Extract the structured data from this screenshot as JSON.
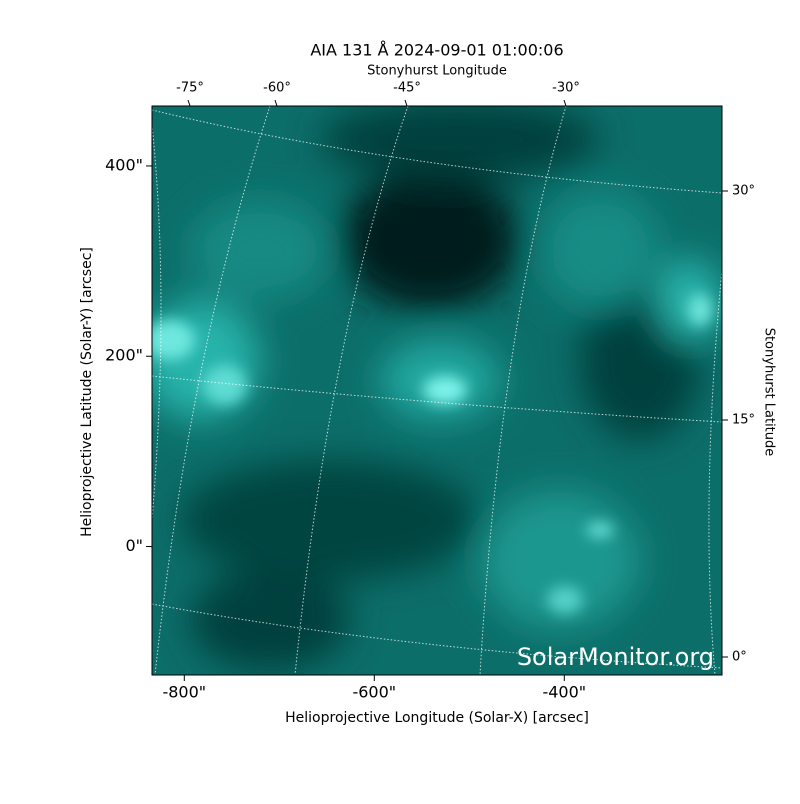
{
  "chart_data": {
    "type": "image",
    "title": "AIA 131 Å 2024-09-01 01:00:06",
    "x_label": "Helioprojective Longitude (Solar-X) [arcsec]",
    "y_label": "Helioprojective Latitude (Solar-Y) [arcsec]",
    "x2_label": "Stonyhurst Longitude",
    "y2_label": "Stonyhurst Latitude",
    "xlim": [
      -834,
      -234
    ],
    "ylim": [
      -135,
      463
    ],
    "xticks": [
      {
        "value": -800,
        "label": "-800\""
      },
      {
        "value": -600,
        "label": "-600\""
      },
      {
        "value": -400,
        "label": "-400\""
      }
    ],
    "yticks": [
      {
        "value": 0,
        "label": "0\""
      },
      {
        "value": 200,
        "label": "200\""
      },
      {
        "value": 400,
        "label": "400\""
      }
    ],
    "x2_tick_labels": [
      "-75°",
      "-60°",
      "-45°",
      "-30°"
    ],
    "y2_tick_labels": [
      "30°",
      "15°",
      "0°"
    ],
    "watermark": "SolarMonitor.org"
  }
}
